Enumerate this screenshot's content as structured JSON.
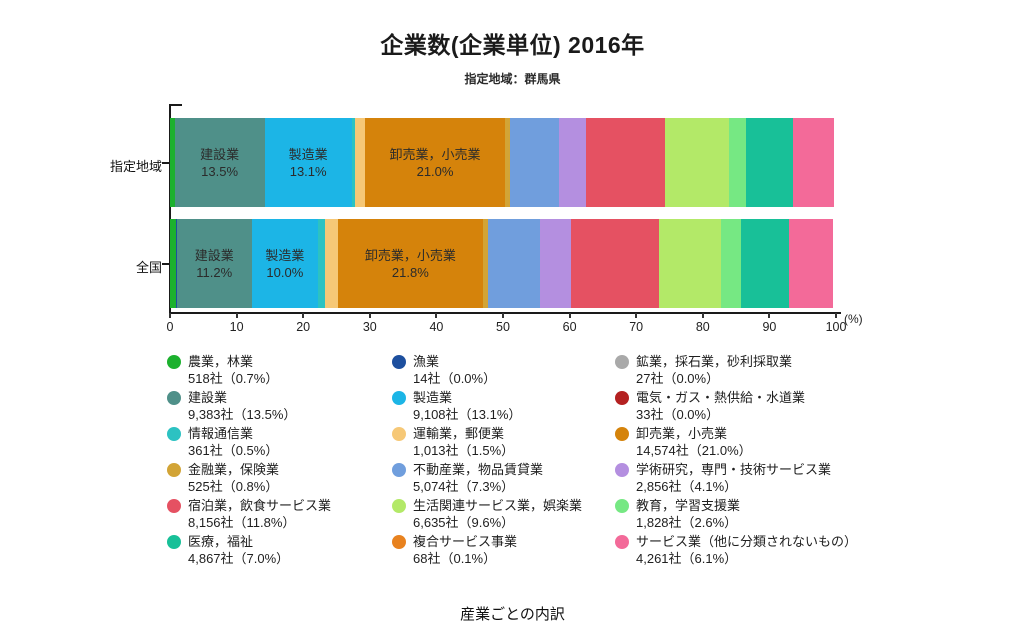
{
  "header": {
    "title": "企業数(企業単位) 2016年",
    "subtitle": "指定地域：群馬県"
  },
  "footer": {
    "caption": "産業ごとの内訳"
  },
  "chart_data": {
    "type": "bar",
    "variant": "stacked-horizontal",
    "title": "企業数(企業単位) 2016年",
    "subtitle": "指定地域：群馬県",
    "categories": [
      "指定地域",
      "全国"
    ],
    "xlim": [
      0,
      100
    ],
    "x_ticks": [
      0,
      10,
      20,
      30,
      40,
      50,
      60,
      70,
      80,
      90,
      100
    ],
    "x_unit": "(%)",
    "grid": false,
    "legend_position": "bottom",
    "industries": [
      {
        "key": "agriculture-forestry",
        "name": "農業，林業",
        "color": "#1cb12e",
        "legend": "518社（0.7%）",
        "values": {
          "region": 0.7,
          "national": 0.9
        }
      },
      {
        "key": "fishery",
        "name": "漁業",
        "color": "#1d4f9e",
        "legend": "14社（0.0%）",
        "values": {
          "region": 0.0,
          "national": 0.1
        }
      },
      {
        "key": "mining-quarrying-gravel",
        "name": "鉱業，採石業，砂利採取業",
        "color": "#a9a9a9",
        "legend": "27社（0.0%）",
        "values": {
          "region": 0.0,
          "national": 0.05
        }
      },
      {
        "key": "construction",
        "name": "建設業",
        "color": "#4f9089",
        "legend": "9,383社（13.5%）",
        "values": {
          "region": 13.5,
          "national": 11.2
        },
        "bar_text": {
          "region": "13.5%",
          "national": "11.2%"
        }
      },
      {
        "key": "manufacturing",
        "name": "製造業",
        "color": "#1cb5e6",
        "legend": "9,108社（13.1%）",
        "values": {
          "region": 13.1,
          "national": 10.0
        },
        "bar_text": {
          "region": "13.1%",
          "national": "10.0%"
        }
      },
      {
        "key": "electricity-gas-heat-water",
        "name": "電気・ガス・熱供給・水道業",
        "color": "#b42121",
        "legend": "33社（0.0%）",
        "values": {
          "region": 0.0,
          "national": 0.05
        }
      },
      {
        "key": "information-communications",
        "name": "情報通信業",
        "color": "#2cc2c2",
        "legend": "361社（0.5%）",
        "values": {
          "region": 0.5,
          "national": 1.0
        }
      },
      {
        "key": "transport-postal",
        "name": "運輸業，郵便業",
        "color": "#f6c877",
        "legend": "1,013社（1.5%）",
        "values": {
          "region": 1.5,
          "national": 1.9
        }
      },
      {
        "key": "wholesale-retail",
        "name": "卸売業，小売業",
        "color": "#d5830b",
        "legend": "14,574社（21.0%）",
        "values": {
          "region": 21.0,
          "national": 21.8
        },
        "bar_text": {
          "region": "21.0%",
          "national": "21.8%"
        }
      },
      {
        "key": "finance-insurance",
        "name": "金融業，保険業",
        "color": "#d2a436",
        "legend": "525社（0.8%）",
        "values": {
          "region": 0.8,
          "national": 0.8
        }
      },
      {
        "key": "realestate-goods-rental",
        "name": "不動産業，物品賃貸業",
        "color": "#709edd",
        "legend": "5,074社（7.3%）",
        "values": {
          "region": 7.3,
          "national": 7.8
        }
      },
      {
        "key": "research-professional-technical",
        "name": "学術研究，専門・技術サービス業",
        "color": "#b48fe0",
        "legend": "2,856社（4.1%）",
        "values": {
          "region": 4.1,
          "national": 4.6
        }
      },
      {
        "key": "accommodation-food-services",
        "name": "宿泊業，飲食サービス業",
        "color": "#e55162",
        "legend": "8,156社（11.8%）",
        "values": {
          "region": 11.8,
          "national": 13.2
        }
      },
      {
        "key": "lifestyle-entertainment-services",
        "name": "生活関連サービス業，娯楽業",
        "color": "#b3e968",
        "legend": "6,635社（9.6%）",
        "values": {
          "region": 9.6,
          "national": 9.4
        }
      },
      {
        "key": "education-learning-support",
        "name": "教育，学習支援業",
        "color": "#76e883",
        "legend": "1,828社（2.6%）",
        "values": {
          "region": 2.6,
          "national": 2.9
        }
      },
      {
        "key": "medical-welfare",
        "name": "医療，福祉",
        "color": "#18c098",
        "legend": "4,867社（7.0%）",
        "values": {
          "region": 7.0,
          "national": 7.2
        }
      },
      {
        "key": "compound-services",
        "name": "複合サービス事業",
        "color": "#e8821f",
        "legend": "68社（0.1%）",
        "values": {
          "region": 0.1,
          "national": 0.1
        }
      },
      {
        "key": "services-nec",
        "name": "サービス業（他に分類されないもの）",
        "color": "#f36a99",
        "legend": "4,261社（6.1%）",
        "values": {
          "region": 6.1,
          "national": 6.5
        }
      }
    ]
  }
}
